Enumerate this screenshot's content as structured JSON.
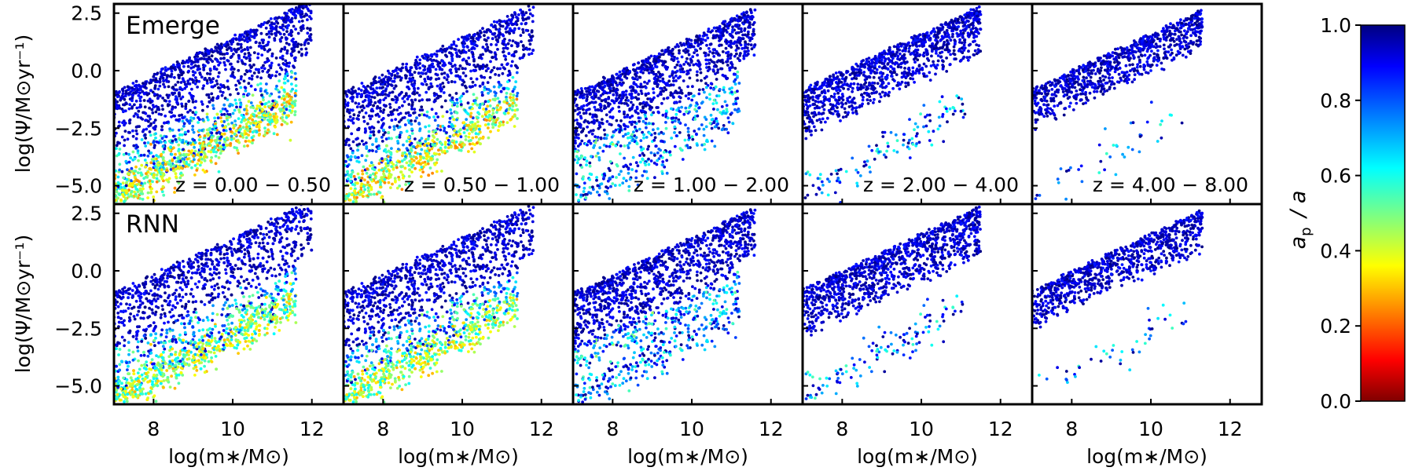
{
  "chart_data": {
    "type": "scatter",
    "layout": "2 rows x 5 columns, shared axes",
    "xlabel": "log(m∗/M⊙)",
    "ylabel": "log(Ψ/M⊙yr⁻¹)",
    "xlim": [
      7.0,
      12.8
    ],
    "ylim": [
      -5.8,
      2.9
    ],
    "x_ticks": [
      8,
      10,
      12
    ],
    "x_tick_labels": [
      "8",
      "10",
      "12"
    ],
    "y_ticks": [
      2.5,
      0.0,
      -2.5,
      -5.0
    ],
    "y_tick_labels": [
      "2.5",
      "0.0",
      "−2.5",
      "−5.0"
    ],
    "rows": [
      {
        "label": "Emerge"
      },
      {
        "label": "RNN"
      }
    ],
    "columns": [
      {
        "z_label": "z = 0.00 − 0.50"
      },
      {
        "z_label": "z = 0.50 − 1.00"
      },
      {
        "z_label": "z = 1.00 − 2.00"
      },
      {
        "z_label": "z = 2.00 − 4.00"
      },
      {
        "z_label": "z = 4.00 − 8.00"
      }
    ],
    "colorbar": {
      "label": "ap / a",
      "colormap": "jet_r",
      "range": [
        0.0,
        1.0
      ],
      "ticks": [
        0.0,
        0.2,
        0.4,
        0.6,
        0.8,
        1.0
      ],
      "tick_labels": [
        "0.0",
        "0.2",
        "0.4",
        "0.6",
        "0.8",
        "1.0"
      ]
    },
    "distributions_approx": {
      "main_sequence_upper_edge": [
        [
          7.0,
          -1.0
        ],
        [
          9.0,
          0.6
        ],
        [
          11.0,
          2.2
        ]
      ],
      "quenched_branch_low_z": [
        [
          7.5,
          -4.8
        ],
        [
          9.0,
          -3.6
        ],
        [
          11.5,
          -0.5
        ]
      ],
      "high_z_columns_sparse_lower_branch": [
        [
          7.5,
          -5.0
        ],
        [
          9.5,
          -2.5
        ],
        [
          11.0,
          -0.8
        ]
      ]
    }
  },
  "labels": {
    "row_emerge": "Emerge",
    "row_rnn": "RNN",
    "z_0": "z = 0.00 − 0.50",
    "z_1": "z = 0.50 − 1.00",
    "z_2": "z = 1.00 − 2.00",
    "z_3": "z = 2.00 − 4.00",
    "z_4": "z = 4.00 − 8.00",
    "xlabel": "log(m∗/M⊙)",
    "ylabel": "log(Ψ/M⊙yr⁻¹)",
    "colorbar_label_main": "a",
    "colorbar_label_sub": "p",
    "colorbar_label_tail": "/ a"
  }
}
